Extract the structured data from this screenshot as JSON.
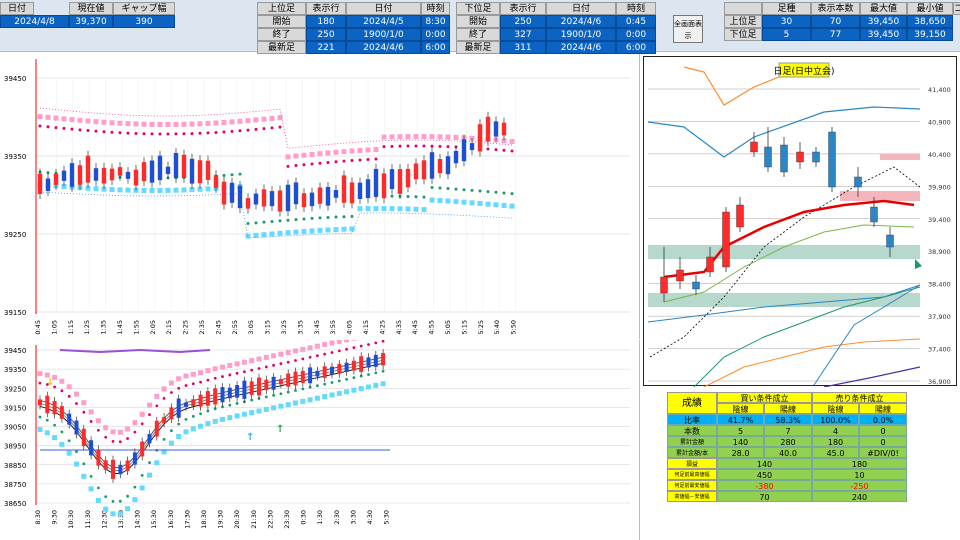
{
  "header": {
    "date_label": "日付",
    "price_label": "現在値",
    "gap_label": "ギャップ幅",
    "date_value": "2024/4/8",
    "price_value": "39,370",
    "gap_value": "390",
    "upper": {
      "col_label": "上位足",
      "row_label": "表示行",
      "date_label": "日付",
      "time_label": "時刻",
      "rows": [
        {
          "name": "開始",
          "row": "180",
          "date": "2024/4/5",
          "time": "8:30"
        },
        {
          "name": "終了",
          "row": "250",
          "date": "1900/1/0",
          "time": "0:00"
        },
        {
          "name": "最新足",
          "row": "221",
          "date": "2024/4/6",
          "time": "6:00"
        }
      ]
    },
    "lower": {
      "col_label": "下位足",
      "row_label": "表示行",
      "date_label": "日付",
      "time_label": "時刻",
      "rows": [
        {
          "name": "開始",
          "row": "250",
          "date": "2024/4/6",
          "time": "0:45"
        },
        {
          "name": "終了",
          "row": "327",
          "date": "1900/1/0",
          "time": "0:00"
        },
        {
          "name": "最新足",
          "row": "311",
          "date": "2024/4/6",
          "time": "6:00"
        }
      ]
    },
    "fullscreen_button": "全画面表示",
    "summary": {
      "headers": [
        "足種",
        "表示本数",
        "最大値",
        "最小値"
      ],
      "rows": [
        {
          "name": "上位足",
          "kind": "30",
          "count": "70",
          "max": "39,450",
          "min": "38,650"
        },
        {
          "name": "下位足",
          "kind": "5",
          "count": "77",
          "max": "39,450",
          "min": "39,150"
        }
      ],
      "cutoff_label": "コマ"
    }
  },
  "upper_chart": {
    "y_ticks": [
      "39450",
      "39350",
      "39250",
      "39150"
    ],
    "x_ticks": [
      "0:45",
      "1:05",
      "1:15",
      "1:25",
      "1:35",
      "1:45",
      "1:55",
      "2:05",
      "2:15",
      "2:25",
      "2:35",
      "2:45",
      "2:55",
      "3:05",
      "3:15",
      "3:25",
      "3:35",
      "3:45",
      "3:55",
      "4:05",
      "4:15",
      "4:25",
      "4:35",
      "4:45",
      "4:55",
      "5:05",
      "5:15",
      "5:25",
      "5:40",
      "5:50"
    ]
  },
  "lower_chart": {
    "y_ticks": [
      "39450",
      "39350",
      "39250",
      "39150",
      "39050",
      "38950",
      "38850",
      "38750",
      "38650"
    ],
    "x_ticks": [
      "8:30",
      "9:30",
      "10:30",
      "11:30",
      "12:30",
      "13:30",
      "14:30",
      "15:30",
      "16:30",
      "17:30",
      "18:30",
      "19:30",
      "20:30",
      "21:30",
      "22:30",
      "23:30",
      "0:30",
      "1:30",
      "2:30",
      "3:30",
      "4:30",
      "5:30"
    ]
  },
  "daily_chart": {
    "title": "日足(日中立会)",
    "y_ticks": [
      "41,400",
      "40,900",
      "40,400",
      "39,900",
      "39,400",
      "38,900",
      "38,400",
      "37,900",
      "37,400",
      "36,900"
    ]
  },
  "stats": {
    "title": "成績",
    "buy_header": "買い条件成立",
    "sell_header": "売り条件成立",
    "col_yin": "陰線",
    "col_yang": "陽線",
    "rows": [
      {
        "label": "比率",
        "b1": "41.7%",
        "b2": "58.3%",
        "s1": "100.0%",
        "s2": "0.0%"
      },
      {
        "label": "本数",
        "b1": "5",
        "b2": "7",
        "s1": "4",
        "s2": "0"
      },
      {
        "label": "累計金額",
        "b1": "140",
        "b2": "280",
        "s1": "180",
        "s2": "0"
      },
      {
        "label": "累計金額/本",
        "b1": "28.0",
        "b2": "40.0",
        "s1": "45.0",
        "s2": "#DIV/0!"
      }
    ],
    "merged_rows": [
      {
        "label": "損益",
        "buy": "140",
        "sell": "180"
      },
      {
        "label": "何足前最高値幅",
        "buy": "450",
        "sell": "10"
      },
      {
        "label": "何足前最安値幅",
        "buy": "-380",
        "sell": "-250"
      },
      {
        "label": "高値幅－安値幅",
        "buy": "70",
        "sell": "240"
      }
    ]
  },
  "colors": {
    "header_bg": "#dce6f1",
    "value_blue": "#0b63c4",
    "stats_yellow": "#ffff00",
    "stats_green": "#92d050",
    "stats_cyan": "#00b0f0"
  }
}
